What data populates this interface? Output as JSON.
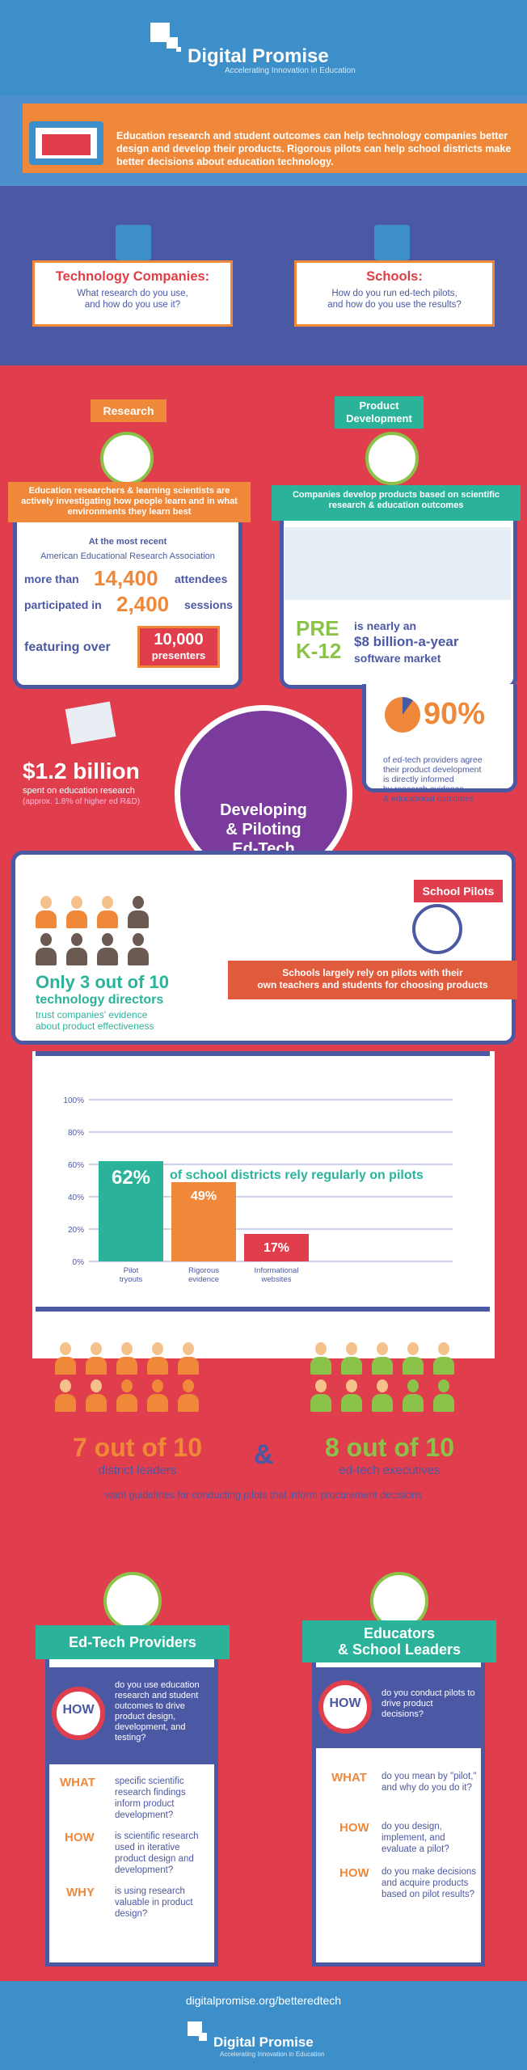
{
  "header": {
    "title": "Digital Promise",
    "tagline": "Accelerating Innovation in Education"
  },
  "intro": {
    "text": "Education research and student outcomes can help technology companies better design and develop their products. Rigorous pilots can help school districts make better decisions about education technology."
  },
  "questions": {
    "tech": {
      "title": "Technology Companies:",
      "sub1": "What research do you use,",
      "sub2": "and how do you use it?"
    },
    "schools": {
      "title": "Schools:",
      "sub1": "How do you run ed-tech pilots,",
      "sub2": "and how do you use the results?"
    }
  },
  "research": {
    "label": "Research",
    "ribbon": "Education researchers & learning scientists are actively investigating how people learn and in what environments they learn best",
    "recent": "At the most recent",
    "assoc": "American Educational Research Association",
    "more_than": "more than",
    "attendees_num": "14,400",
    "attendees": "attendees",
    "participated": "participated in",
    "sessions_num": "2,400",
    "sessions": "sessions",
    "featuring": "featuring over",
    "presenters_num": "10,000",
    "presenters": "presenters",
    "spent_amount": "$1.2 billion",
    "spent_label": "spent on education research",
    "spent_note": "(approx. 1.8% of higher ed R&D)"
  },
  "product": {
    "label1": "Product",
    "label2": "Development",
    "ribbon": "Companies develop products based on scientific research & education outcomes",
    "pre": "PRE",
    "k12": "K-12",
    "market1": "is nearly an",
    "market2": "$8 billion-a-year",
    "market3": "software market",
    "pct": "90%",
    "pct_text1": "of ed-tech providers agree",
    "pct_text2": "their product development",
    "pct_text3": "is directly informed",
    "pct_text4": "by research evidence",
    "pct_text5": "& educational outcomes"
  },
  "center": {
    "l1": "Developing",
    "l2": "& Piloting",
    "l3": "Ed-Tech"
  },
  "pilots": {
    "label": "School Pilots",
    "ribbon1": "Schools largely rely on pilots with their",
    "ribbon2": "own teachers and students for choosing products",
    "only": "Only 3 out of 10",
    "directors": "technology directors",
    "trust1": "trust companies' evidence",
    "trust2": "about product effectiveness"
  },
  "chart_data": {
    "type": "bar",
    "categories": [
      "Pilot tryouts",
      "Rigorous evidence",
      "Informational websites"
    ],
    "values": [
      62,
      49,
      17
    ],
    "colors": [
      "#2ab39a",
      "#f0883a",
      "#e03e4c"
    ],
    "ylim": [
      0,
      100
    ],
    "yticks": [
      "100%",
      "80%",
      "60%",
      "40%",
      "20%",
      "0%"
    ],
    "value_labels": [
      "62%",
      "49%",
      "17%"
    ],
    "annotation": "of school districts rely regularly on pilots"
  },
  "guidelines": {
    "leaders_stat": "7 out of 10",
    "leaders": "district leaders",
    "amp": "&",
    "exec_stat": "8 out of 10",
    "execs": "ed-tech executives",
    "text": "want guidelines for conducting pilots that inform procurement decisions"
  },
  "providers": {
    "title": "Ed-Tech Providers",
    "how": "HOW",
    "how_q": "do you use education research and student outcomes to drive product design, development, and testing?",
    "what": "WHAT",
    "what_q": "specific scientific research findings inform product development?",
    "how2": "HOW",
    "how2_q": "is scientific research used in iterative product design and development?",
    "why": "WHY",
    "why_q": "is using research valuable in product design?"
  },
  "educators": {
    "title1": "Educators",
    "title2": "& School Leaders",
    "how": "HOW",
    "how_q": "do you conduct pilots to drive product decisions?",
    "what": "WHAT",
    "what_q": "do you mean by \"pilot,\" and why do you do it?",
    "how2": "HOW",
    "how2_q": "do you design, implement, and evaluate a pilot?",
    "how3": "HOW",
    "how3_q": "do you make decisions and acquire products based on pilot results?"
  },
  "footer": {
    "url": "digitalpromise.org/betteredtech",
    "title": "Digital Promise",
    "tagline": "Accelerating Innovation in Education"
  }
}
